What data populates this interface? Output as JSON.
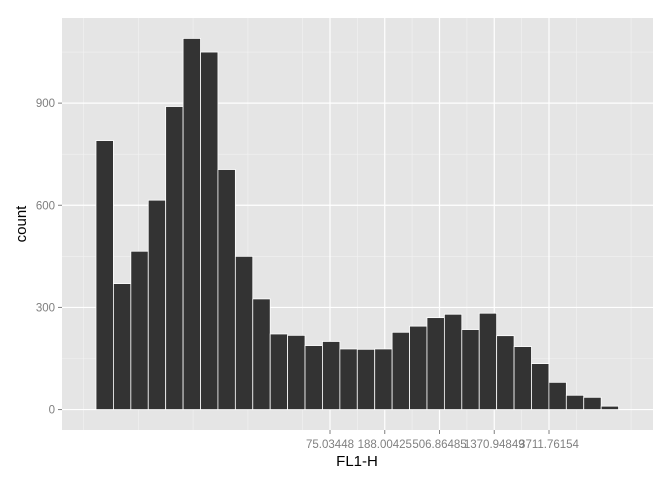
{
  "chart_data": {
    "type": "bar",
    "title": "",
    "xlabel": "FL1-H",
    "ylabel": "count",
    "ylim": [
      -60,
      1150
    ],
    "grid": true,
    "y_ticks": [
      0,
      300,
      600,
      900
    ],
    "x_tick_labels": [
      "75.03448",
      "188.00425",
      "506.86485",
      "1370.94849",
      "3711.76154"
    ],
    "values": [
      790,
      370,
      465,
      615,
      890,
      1090,
      1050,
      705,
      450,
      325,
      222,
      218,
      188,
      200,
      178,
      177,
      178,
      227,
      245,
      270,
      280,
      235,
      283,
      217,
      185,
      135,
      80,
      42,
      36,
      10,
      0
    ],
    "colors": {
      "bar_fill": "#333333",
      "bar_stroke": "#ffffff",
      "panel": "#e5e5e5",
      "grid_major": "#ffffff",
      "grid_minor": "#f2f2f2",
      "tick_text": "#7f7f7f"
    }
  }
}
